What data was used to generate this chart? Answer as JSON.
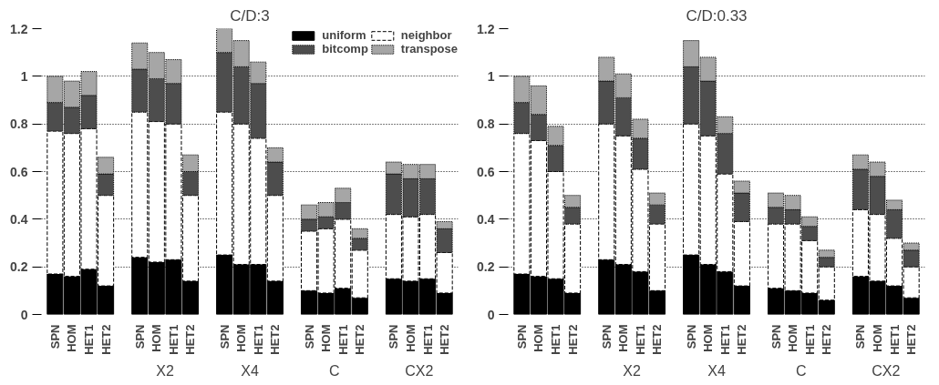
{
  "chart_data": [
    {
      "type": "bar",
      "title": "C/D:3",
      "stacked": true,
      "grid": "y",
      "legend": "top right",
      "categories": [
        "SPN",
        "HOM",
        "HET1",
        "HET2",
        "SPN",
        "HOM",
        "HET1",
        "HET2",
        "SPN",
        "HOM",
        "HET1",
        "HET2",
        "SPN",
        "HOM",
        "HET1",
        "HET2",
        "SPN",
        "HOM",
        "HET1",
        "HET2"
      ],
      "annotations": [
        "X2",
        "X4",
        "C",
        "CX2"
      ],
      "ylim": [
        0,
        1.2
      ],
      "yticks": [
        0,
        0.2,
        0.4,
        0.6,
        0.8,
        1,
        1.2
      ],
      "series": [
        {
          "name": "uniform",
          "color": "#000000",
          "line_style": "solid",
          "values": [
            0.17,
            0.16,
            0.19,
            0.12,
            0.24,
            0.22,
            0.23,
            0.14,
            0.25,
            0.21,
            0.21,
            0.14,
            0.1,
            0.09,
            0.11,
            0.07,
            0.15,
            0.14,
            0.15,
            0.09
          ]
        },
        {
          "name": "neighbor",
          "color": "#ffffff",
          "line_style": "dashed",
          "values": [
            0.6,
            0.6,
            0.59,
            0.38,
            0.61,
            0.59,
            0.57,
            0.36,
            0.6,
            0.59,
            0.53,
            0.36,
            0.25,
            0.27,
            0.29,
            0.2,
            0.27,
            0.27,
            0.27,
            0.17
          ]
        },
        {
          "name": "bitcomp",
          "color": "#4d4d4d",
          "line_style": "dotted",
          "values": [
            0.12,
            0.11,
            0.14,
            0.09,
            0.18,
            0.18,
            0.17,
            0.1,
            0.25,
            0.24,
            0.23,
            0.14,
            0.05,
            0.05,
            0.07,
            0.05,
            0.17,
            0.16,
            0.15,
            0.1
          ]
        },
        {
          "name": "transpose",
          "color": "#a6a6a6",
          "line_style": "dotted",
          "values": [
            0.11,
            0.11,
            0.1,
            0.07,
            0.11,
            0.11,
            0.1,
            0.07,
            0.1,
            0.11,
            0.09,
            0.06,
            0.06,
            0.06,
            0.06,
            0.04,
            0.05,
            0.06,
            0.06,
            0.03
          ]
        }
      ]
    },
    {
      "type": "bar",
      "title": "C/D:0.33",
      "stacked": true,
      "grid": "y",
      "categories": [
        "SPN",
        "HOM",
        "HET1",
        "HET2",
        "SPN",
        "HOM",
        "HET1",
        "HET2",
        "SPN",
        "HOM",
        "HET1",
        "HET2",
        "SPN",
        "HOM",
        "HET1",
        "HET2",
        "SPN",
        "HOM",
        "HET1",
        "HET2"
      ],
      "annotations": [
        "X2",
        "X4",
        "C",
        "CX2"
      ],
      "ylim": [
        0,
        1.2
      ],
      "yticks": [
        0,
        0.2,
        0.4,
        0.6,
        0.8,
        1,
        1.2
      ],
      "series": [
        {
          "color": "#000000",
          "line_style": "solid",
          "values": [
            0.17,
            0.16,
            0.15,
            0.09,
            0.23,
            0.21,
            0.18,
            0.1,
            0.25,
            0.21,
            0.18,
            0.12,
            0.11,
            0.1,
            0.09,
            0.06,
            0.16,
            0.14,
            0.12,
            0.07
          ]
        },
        {
          "color": "#ffffff",
          "line_style": "dashed",
          "values": [
            0.59,
            0.57,
            0.45,
            0.29,
            0.57,
            0.54,
            0.43,
            0.28,
            0.55,
            0.54,
            0.41,
            0.27,
            0.27,
            0.28,
            0.22,
            0.14,
            0.28,
            0.28,
            0.2,
            0.13
          ]
        },
        {
          "color": "#4d4d4d",
          "line_style": "dotted",
          "values": [
            0.13,
            0.11,
            0.11,
            0.07,
            0.18,
            0.16,
            0.13,
            0.08,
            0.24,
            0.23,
            0.17,
            0.12,
            0.07,
            0.06,
            0.06,
            0.04,
            0.17,
            0.16,
            0.12,
            0.07
          ]
        },
        {
          "color": "#a6a6a6",
          "line_style": "dotted",
          "values": [
            0.11,
            0.12,
            0.08,
            0.05,
            0.1,
            0.1,
            0.08,
            0.05,
            0.11,
            0.1,
            0.07,
            0.05,
            0.06,
            0.06,
            0.04,
            0.03,
            0.06,
            0.06,
            0.04,
            0.03
          ]
        }
      ]
    }
  ]
}
